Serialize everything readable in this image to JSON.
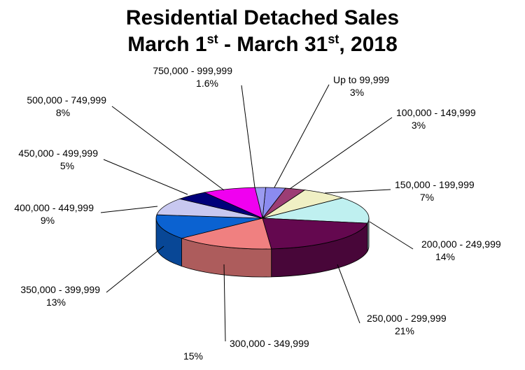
{
  "title": {
    "line1": "Residential Detached Sales",
    "line2_prefix": "March 1",
    "line2_sup1": "st",
    "line2_mid": " - March 31",
    "line2_sup2": "st",
    "line2_suffix": ", 2018"
  },
  "chart_data": {
    "type": "pie",
    "title": "Residential Detached Sales March 1st - March 31st, 2018",
    "style": "3d-tilted",
    "slices": [
      {
        "label": "Up to 99,999",
        "value_label": "3%",
        "value": 3,
        "color": "#8b8bf0"
      },
      {
        "label": "100,000 - 149,999",
        "value_label": "3%",
        "value": 3,
        "color": "#9c3d74"
      },
      {
        "label": "150,000 - 199,999",
        "value_label": "7%",
        "value": 7,
        "color": "#f0f0c4"
      },
      {
        "label": "200,000 - 249,999",
        "value_label": "14%",
        "value": 14,
        "color": "#bff0f0"
      },
      {
        "label": "250,000 - 299,999",
        "value_label": "21%",
        "value": 21,
        "color": "#64084f"
      },
      {
        "label": "300,000 - 349,999",
        "value_label": "15%",
        "value": 15,
        "color": "#f08080"
      },
      {
        "label": "350,000 - 399,999",
        "value_label": "13%",
        "value": 13,
        "color": "#0b62d1"
      },
      {
        "label": "400,000 - 449,999",
        "value_label": "9%",
        "value": 9,
        "color": "#c8c8f0"
      },
      {
        "label": "450,000 - 499,999",
        "value_label": "5%",
        "value": 5,
        "color": "#00007a"
      },
      {
        "label": "500,000 - 749,999",
        "value_label": "8%",
        "value": 8,
        "color": "#f000f0"
      },
      {
        "label": "750,000 - 999,999",
        "value_label": "1.6%",
        "value": 1.6,
        "color": "#9b9bf0"
      }
    ],
    "legend": "none"
  }
}
